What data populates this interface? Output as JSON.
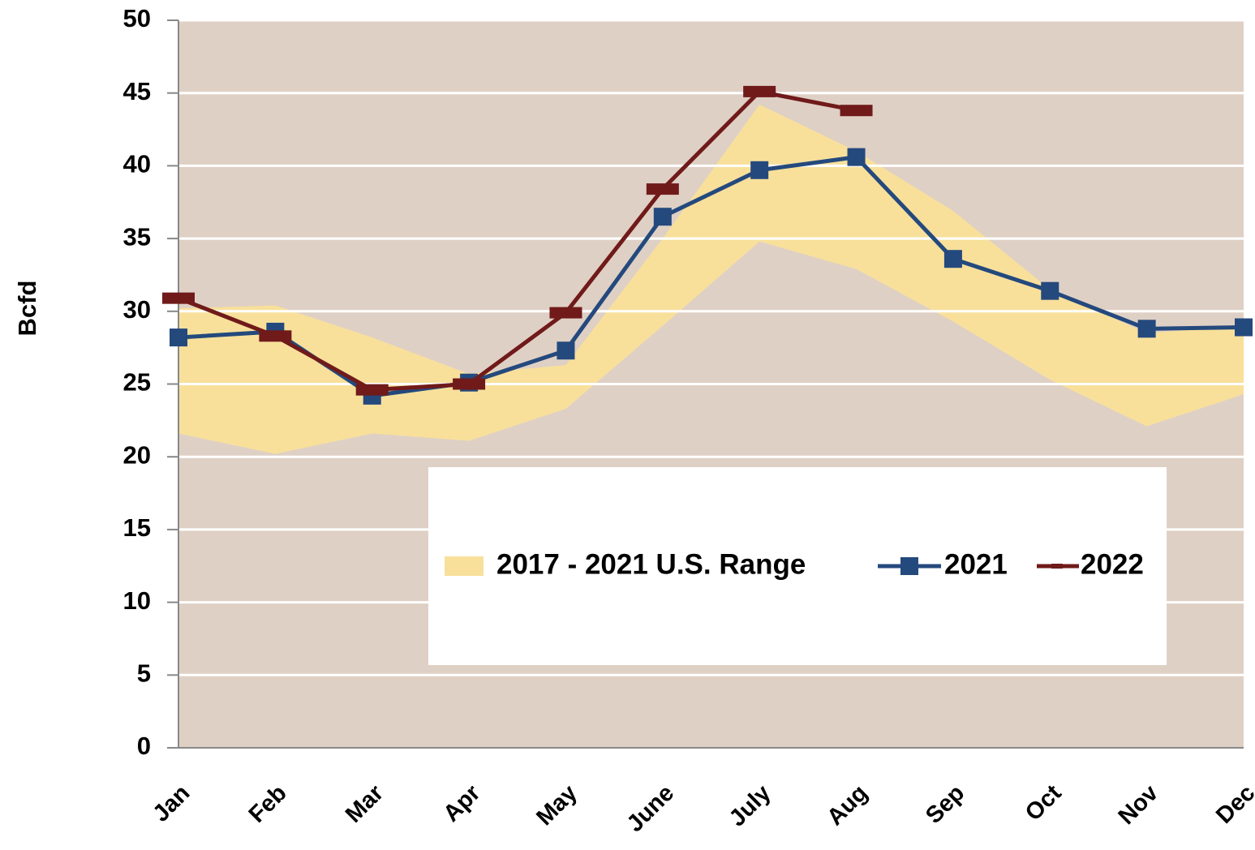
{
  "chart_data": {
    "type": "line",
    "y_label": "Bcfd",
    "categories": [
      "Jan",
      "Feb",
      "Mar",
      "Apr",
      "May",
      "June",
      "July",
      "Aug",
      "Sep",
      "Oct",
      "Nov",
      "Dec"
    ],
    "ylim": [
      0,
      50
    ],
    "yticks": [
      0,
      5,
      10,
      15,
      20,
      25,
      30,
      35,
      40,
      45,
      50
    ],
    "grid": true,
    "background": "#dfd0c5",
    "range": {
      "name": "2017 - 2021 U.S. Range",
      "color": "#f8e09b",
      "low": [
        21.6,
        20.2,
        21.6,
        21.1,
        23.3,
        29.0,
        34.8,
        32.9,
        29.3,
        25.3,
        22.1,
        24.3
      ],
      "high": [
        30.2,
        30.4,
        28.2,
        25.7,
        26.3,
        35.0,
        44.2,
        41.0,
        36.9,
        31.5,
        28.5,
        29.0
      ]
    },
    "series": [
      {
        "name": "2021",
        "color": "#24497d",
        "marker": "square",
        "values": [
          28.2,
          28.6,
          24.2,
          25.1,
          27.3,
          36.5,
          39.7,
          40.6,
          33.6,
          31.4,
          28.8,
          28.9
        ]
      },
      {
        "name": "2022",
        "color": "#701a1a",
        "marker": "dash",
        "values": [
          30.9,
          28.3,
          24.6,
          25.0,
          29.9,
          38.4,
          45.1,
          43.8,
          null,
          null,
          null,
          null
        ]
      }
    ]
  }
}
